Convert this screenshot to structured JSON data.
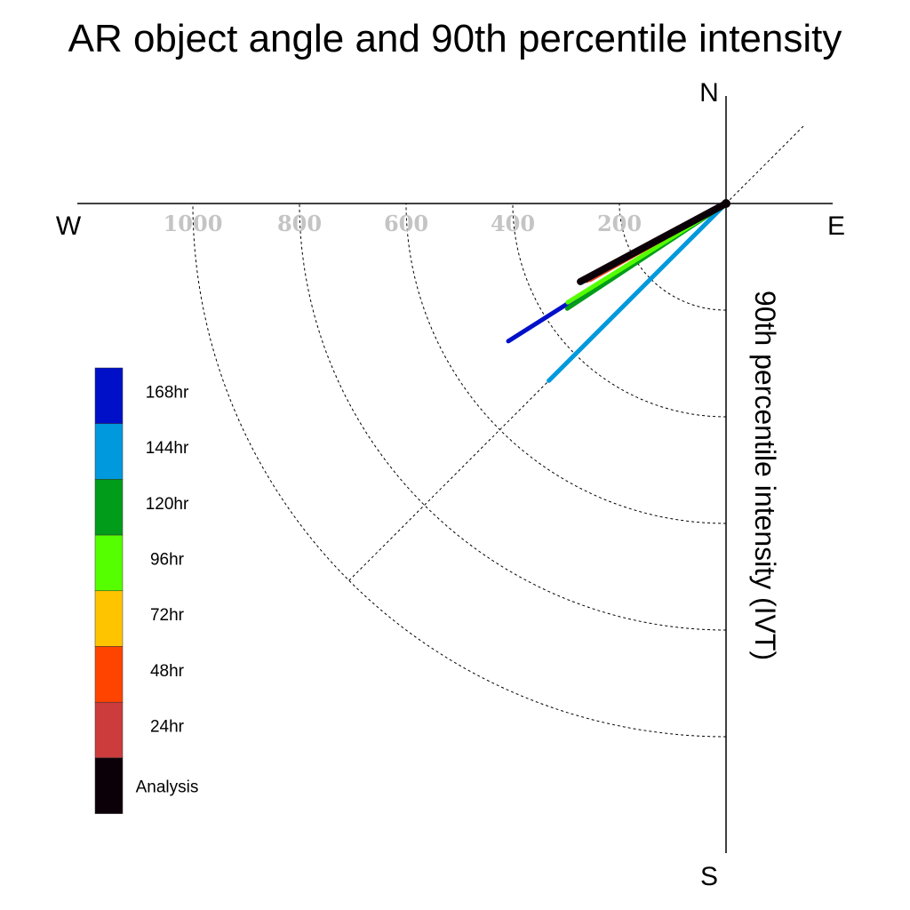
{
  "chart_data": {
    "type": "polar-vector",
    "title": "AR object angle and 90th percentile intensity",
    "radial_label": "90th percentile intensity (IVT)",
    "compass": {
      "north": "N",
      "south": "S",
      "east": "E",
      "west": "W"
    },
    "radial_ticks": [
      200,
      400,
      600,
      800,
      1000
    ],
    "radial_tick_labels": [
      "200",
      "400",
      "600",
      "800",
      "1000"
    ],
    "radial_range": [
      0,
      1250
    ],
    "reference_line": "dotted diagonal through origin (NE–SW)",
    "legend_placement": "left",
    "series": [
      {
        "name": "168hr",
        "color": "#0010c8",
        "direction_deg": 237.7,
        "intensity": 483
      },
      {
        "name": "144hr",
        "color": "#0099dd",
        "direction_deg": 225.0,
        "intensity": 470
      },
      {
        "name": "120hr",
        "color": "#009c1a",
        "direction_deg": 236.5,
        "intensity": 357
      },
      {
        "name": "96hr",
        "color": "#55ff00",
        "direction_deg": 238.0,
        "intensity": 350
      },
      {
        "name": "72hr",
        "color": "#ffc400",
        "direction_deg": 240.8,
        "intensity": 294
      },
      {
        "name": "48hr",
        "color": "#ff4400",
        "direction_deg": 240.7,
        "intensity": 292
      },
      {
        "name": "24hr",
        "color": "#cc3c3c",
        "direction_deg": 241.0,
        "intensity": 299
      },
      {
        "name": "Analysis",
        "color": "#0c0008",
        "direction_deg": 241.8,
        "intensity": 310
      }
    ]
  }
}
